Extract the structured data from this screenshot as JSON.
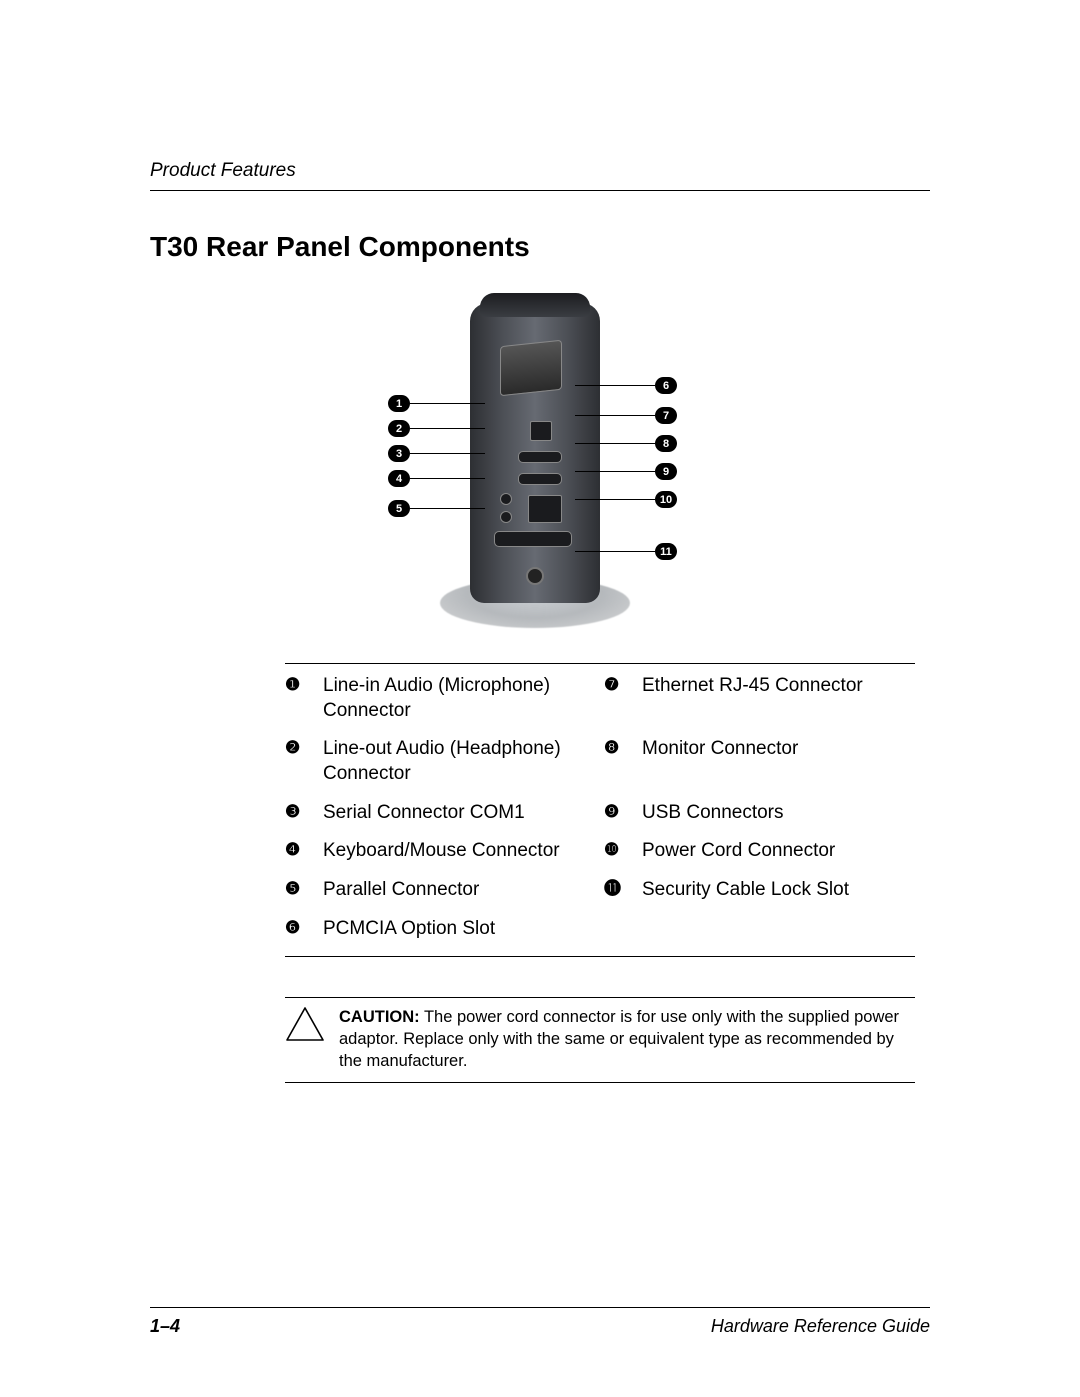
{
  "header": {
    "section": "Product Features"
  },
  "title": "T30 Rear Panel Components",
  "diagram": {
    "left_callouts": [
      {
        "n": "1",
        "i": 0
      },
      {
        "n": "2",
        "i": 1
      },
      {
        "n": "3",
        "i": 2
      },
      {
        "n": "4",
        "i": 3
      },
      {
        "n": "5",
        "i": 4
      }
    ],
    "right_callouts": [
      {
        "n": "6",
        "i": 0
      },
      {
        "n": "7",
        "i": 1
      },
      {
        "n": "8",
        "i": 2
      },
      {
        "n": "9",
        "i": 3
      },
      {
        "n": "10",
        "i": 4
      },
      {
        "n": "11",
        "i": 5
      }
    ]
  },
  "legend": {
    "rows": [
      {
        "ln": "❶",
        "lt": "Line-in Audio (Microphone) Connector",
        "rn": "❼",
        "rt": "Ethernet RJ-45 Connector"
      },
      {
        "ln": "❷",
        "lt": "Line-out Audio (Headphone) Connector",
        "rn": "❽",
        "rt": "Monitor Connector"
      },
      {
        "ln": "❸",
        "lt": "Serial Connector COM1",
        "rn": "❾",
        "rt": "USB Connectors"
      },
      {
        "ln": "❹",
        "lt": "Keyboard/Mouse Connector",
        "rn": "❿",
        "rt": "Power Cord Connector"
      },
      {
        "ln": "❺",
        "lt": "Parallel Connector",
        "rn": "⓫",
        "rt": "Security Cable Lock Slot"
      },
      {
        "ln": "❻",
        "lt": "PCMCIA Option Slot",
        "rn": "",
        "rt": ""
      }
    ]
  },
  "caution": {
    "label": "CAUTION:",
    "text": "The power cord connector is for use only with the supplied power adaptor. Replace only with the same or equivalent type as recommended by the manufacturer."
  },
  "footer": {
    "page": "1–4",
    "doc": "Hardware Reference Guide"
  },
  "style": {
    "text_color": "#000000",
    "background": "#ffffff",
    "title_fontsize": 28,
    "body_fontsize": 19,
    "caution_fontsize": 16.5,
    "header_fontsize": 19,
    "footer_fontsize": 18
  }
}
